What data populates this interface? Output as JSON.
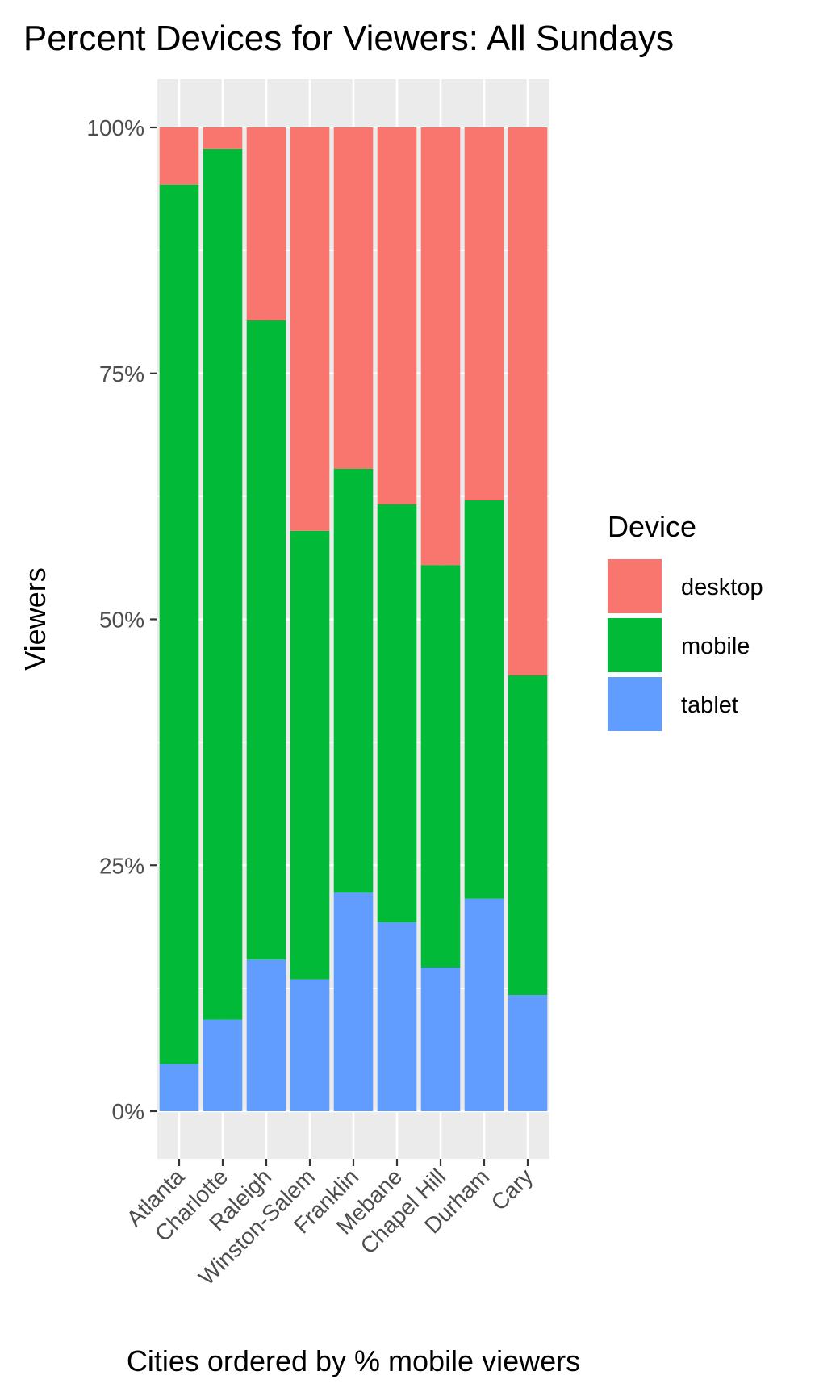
{
  "chart_data": {
    "type": "bar",
    "stacked": true,
    "normalized": true,
    "title": "Percent Devices for Viewers: All Sundays",
    "xlabel": "Cities ordered by % mobile viewers",
    "ylabel": "Viewers",
    "categories": [
      "Atlanta",
      "Charlotte",
      "Raleigh",
      "Winston-Salem",
      "Franklin",
      "Mebane",
      "Chapel Hill",
      "Durham",
      "Cary"
    ],
    "series": [
      {
        "name": "tablet",
        "color": "#619CFF",
        "values": [
          0.048,
          0.093,
          0.154,
          0.134,
          0.222,
          0.192,
          0.146,
          0.216,
          0.118
        ]
      },
      {
        "name": "mobile",
        "color": "#00BA38",
        "values": [
          0.894,
          0.885,
          0.65,
          0.456,
          0.431,
          0.425,
          0.409,
          0.405,
          0.325
        ]
      },
      {
        "name": "desktop",
        "color": "#F8766D",
        "values": [
          0.058,
          0.022,
          0.196,
          0.41,
          0.347,
          0.383,
          0.445,
          0.379,
          0.557
        ]
      }
    ],
    "ylim": [
      0,
      1
    ],
    "yticks": [
      0,
      0.25,
      0.5,
      0.75,
      1
    ],
    "ytick_labels": [
      "0%",
      "25%",
      "50%",
      "75%",
      "100%"
    ],
    "legend": {
      "title": "Device",
      "position": "right",
      "entries": [
        "desktop",
        "mobile",
        "tablet"
      ]
    },
    "grid": true
  }
}
